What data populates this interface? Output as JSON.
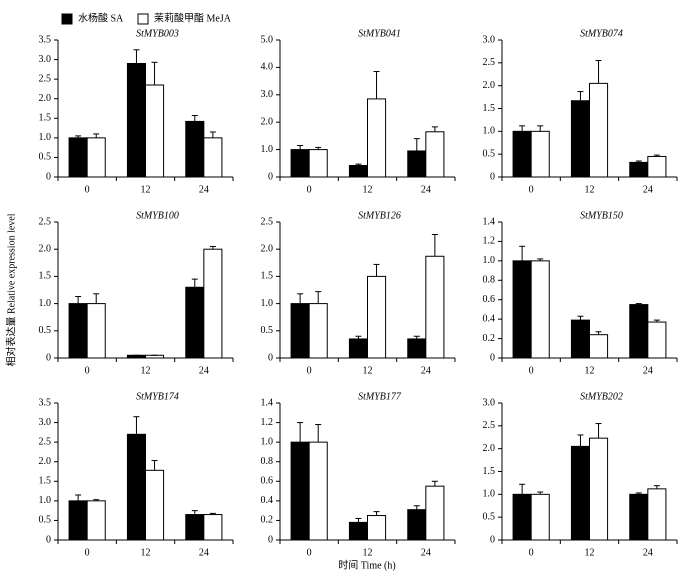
{
  "xlabel": "时间 Time (h)",
  "ylabel": "相对表达量 Relative expression level",
  "chart_data": [
    {
      "type": "bar",
      "title": "StMYB003",
      "categories": [
        "0",
        "12",
        "24"
      ],
      "ylim": [
        0,
        3.5
      ],
      "yticks": [
        0,
        0.5,
        {
          "value": 1,
          "label": "1.0"
        },
        1.5,
        {
          "value": 2,
          "label": "2.0"
        },
        2.5,
        {
          "value": 3,
          "label": "3.0"
        },
        3.5
      ],
      "series": [
        {
          "name": "水杨酸 SA",
          "color": "#000000",
          "values": [
            1.0,
            2.9,
            1.42
          ],
          "errors": [
            0.05,
            0.35,
            0.15
          ]
        },
        {
          "name": "茉莉酸甲酯 MeJA",
          "color": "#ffffff",
          "values": [
            1.0,
            2.35,
            1.0
          ],
          "errors": [
            0.1,
            0.58,
            0.15
          ]
        }
      ]
    },
    {
      "type": "bar",
      "title": "StMYB041",
      "categories": [
        "0",
        "12",
        "24"
      ],
      "ylim": [
        0,
        5
      ],
      "yticks": [
        0,
        {
          "value": 1,
          "label": "1.0"
        },
        {
          "value": 2,
          "label": "2.0"
        },
        {
          "value": 3,
          "label": "3.0"
        },
        {
          "value": 4,
          "label": "4.0"
        },
        {
          "value": 5,
          "label": "5.0"
        }
      ],
      "series": [
        {
          "name": "水杨酸 SA",
          "color": "#000000",
          "values": [
            1.0,
            0.42,
            0.95
          ],
          "errors": [
            0.15,
            0.05,
            0.45
          ]
        },
        {
          "name": "茉莉酸甲酯 MeJA",
          "color": "#ffffff",
          "values": [
            1.0,
            2.85,
            1.65
          ],
          "errors": [
            0.08,
            1.0,
            0.18
          ]
        }
      ]
    },
    {
      "type": "bar",
      "title": "StMYB074",
      "categories": [
        "0",
        "12",
        "24"
      ],
      "ylim": [
        0,
        3
      ],
      "yticks": [
        0,
        0.5,
        {
          "value": 1,
          "label": "1.0"
        },
        1.5,
        {
          "value": 2,
          "label": "2.0"
        },
        2.5,
        {
          "value": 3,
          "label": "3.0"
        }
      ],
      "series": [
        {
          "name": "水杨酸 SA",
          "color": "#000000",
          "values": [
            1.0,
            1.67,
            0.32
          ],
          "errors": [
            0.12,
            0.2,
            0.03
          ]
        },
        {
          "name": "茉莉酸甲酯 MeJA",
          "color": "#ffffff",
          "values": [
            1.0,
            2.05,
            0.45
          ],
          "errors": [
            0.12,
            0.5,
            0.03
          ]
        }
      ]
    },
    {
      "type": "bar",
      "title": "StMYB100",
      "categories": [
        "0",
        "12",
        "24"
      ],
      "ylim": [
        0,
        2.5
      ],
      "yticks": [
        0,
        0.5,
        {
          "value": 1,
          "label": "1.0"
        },
        1.5,
        {
          "value": 2,
          "label": "2.0"
        },
        2.5
      ],
      "series": [
        {
          "name": "水杨酸 SA",
          "color": "#000000",
          "values": [
            1.0,
            0.05,
            1.3
          ],
          "errors": [
            0.13,
            0,
            0.15
          ]
        },
        {
          "name": "茉莉酸甲酯 MeJA",
          "color": "#ffffff",
          "values": [
            1.0,
            0.05,
            2.0
          ],
          "errors": [
            0.18,
            0,
            0.05
          ]
        }
      ]
    },
    {
      "type": "bar",
      "title": "StMYB126",
      "categories": [
        "0",
        "12",
        "24"
      ],
      "ylim": [
        0,
        2.5
      ],
      "yticks": [
        0,
        0.5,
        {
          "value": 1,
          "label": "1.0"
        },
        1.5,
        {
          "value": 2,
          "label": "2.0"
        },
        2.5
      ],
      "series": [
        {
          "name": "水杨酸 SA",
          "color": "#000000",
          "values": [
            1.0,
            0.35,
            0.35
          ],
          "errors": [
            0.18,
            0.05,
            0.05
          ]
        },
        {
          "name": "茉莉酸甲酯 MeJA",
          "color": "#ffffff",
          "values": [
            1.0,
            1.5,
            1.87
          ],
          "errors": [
            0.22,
            0.22,
            0.4
          ]
        }
      ]
    },
    {
      "type": "bar",
      "title": "StMYB150",
      "categories": [
        "0",
        "12",
        "24"
      ],
      "ylim": [
        0,
        1.4
      ],
      "yticks": [
        0,
        0.2,
        0.4,
        0.6,
        0.8,
        {
          "value": 1,
          "label": "1.0"
        },
        1.2,
        1.4
      ],
      "series": [
        {
          "name": "水杨酸 SA",
          "color": "#000000",
          "values": [
            1.0,
            0.39,
            0.55
          ],
          "errors": [
            0.15,
            0.04,
            0.01
          ]
        },
        {
          "name": "茉莉酸甲酯 MeJA",
          "color": "#ffffff",
          "values": [
            1.0,
            0.24,
            0.37
          ],
          "errors": [
            0.02,
            0.03,
            0.02
          ]
        }
      ]
    },
    {
      "type": "bar",
      "title": "StMYB174",
      "categories": [
        "0",
        "12",
        "24"
      ],
      "ylim": [
        0,
        3.5
      ],
      "yticks": [
        0,
        0.5,
        {
          "value": 1,
          "label": "1.0"
        },
        1.5,
        {
          "value": 2,
          "label": "2.0"
        },
        2.5,
        {
          "value": 3,
          "label": "3.0"
        },
        3.5
      ],
      "series": [
        {
          "name": "水杨酸 SA",
          "color": "#000000",
          "values": [
            1.0,
            2.7,
            0.65
          ],
          "errors": [
            0.15,
            0.45,
            0.1
          ]
        },
        {
          "name": "茉莉酸甲酯 MeJA",
          "color": "#ffffff",
          "values": [
            1.0,
            1.78,
            0.65
          ],
          "errors": [
            0.03,
            0.25,
            0.03
          ]
        }
      ]
    },
    {
      "type": "bar",
      "title": "StMYB177",
      "categories": [
        "0",
        "12",
        "24"
      ],
      "ylim": [
        0,
        1.4
      ],
      "yticks": [
        0,
        0.2,
        0.4,
        0.6,
        0.8,
        {
          "value": 1,
          "label": "1.0"
        },
        1.2,
        1.4
      ],
      "series": [
        {
          "name": "水杨酸 SA",
          "color": "#000000",
          "values": [
            1.0,
            0.18,
            0.31
          ],
          "errors": [
            0.2,
            0.04,
            0.04
          ]
        },
        {
          "name": "茉莉酸甲酯 MeJA",
          "color": "#ffffff",
          "values": [
            1.0,
            0.25,
            0.55
          ],
          "errors": [
            0.18,
            0.04,
            0.05
          ]
        }
      ]
    },
    {
      "type": "bar",
      "title": "StMYB202",
      "categories": [
        "0",
        "12",
        "24"
      ],
      "ylim": [
        0,
        3
      ],
      "yticks": [
        0,
        0.5,
        {
          "value": 1,
          "label": "1.0"
        },
        1.5,
        {
          "value": 2,
          "label": "2.0"
        },
        2.5,
        {
          "value": 3,
          "label": "3.0"
        }
      ],
      "series": [
        {
          "name": "水杨酸 SA",
          "color": "#000000",
          "values": [
            1.0,
            2.05,
            1.0
          ],
          "errors": [
            0.22,
            0.25,
            0.03
          ]
        },
        {
          "name": "茉莉酸甲酯 MeJA",
          "color": "#ffffff",
          "values": [
            1.0,
            2.23,
            1.12
          ],
          "errors": [
            0.05,
            0.32,
            0.07
          ]
        }
      ]
    }
  ]
}
